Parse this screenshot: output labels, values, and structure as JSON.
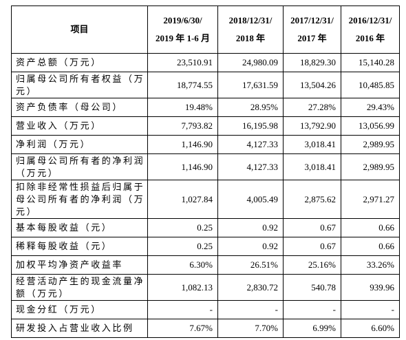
{
  "table": {
    "header": [
      "项目",
      [
        "2019/6/30/",
        "2019 年 1-6 月"
      ],
      [
        "2018/12/31/",
        "2018 年"
      ],
      [
        "2017/12/31/",
        "2017 年"
      ],
      [
        "2016/12/31/",
        "2016 年"
      ]
    ],
    "rows": [
      [
        "资产总额（万元）",
        "23,510.91",
        "24,980.09",
        "18,829.30",
        "15,140.28"
      ],
      [
        "归属母公司所有者权益（万元）",
        "18,774.55",
        "17,631.59",
        "13,504.26",
        "10,485.85"
      ],
      [
        "资产负债率（母公司）",
        "19.48%",
        "28.95%",
        "27.28%",
        "29.43%"
      ],
      [
        "营业收入（万元）",
        "7,793.82",
        "16,195.98",
        "13,792.90",
        "13,056.99"
      ],
      [
        "净利润（万元）",
        "1,146.90",
        "4,127.33",
        "3,018.41",
        "2,989.95"
      ],
      [
        "归属母公司所有者的净利润（万元）",
        "1,146.90",
        "4,127.33",
        "3,018.41",
        "2,989.95"
      ],
      [
        "扣除非经常性损益后归属于母公司所有者的净利润（万元）",
        "1,027.84",
        "4,005.49",
        "2,875.62",
        "2,971.27"
      ],
      [
        "基本每股收益（元）",
        "0.25",
        "0.92",
        "0.67",
        "0.66"
      ],
      [
        "稀释每股收益（元）",
        "0.25",
        "0.92",
        "0.67",
        "0.66"
      ],
      [
        "加权平均净资产收益率",
        "6.30%",
        "26.51%",
        "25.16%",
        "33.26%"
      ],
      [
        "经营活动产生的现金流量净额（万元）",
        "1,082.13",
        "2,830.72",
        "540.78",
        "939.96"
      ],
      [
        "现金分红（万元）",
        "-",
        "-",
        "-",
        "-"
      ],
      [
        "研发投入占营业收入比例",
        "7.67%",
        "7.70%",
        "6.99%",
        "6.60%"
      ]
    ]
  }
}
